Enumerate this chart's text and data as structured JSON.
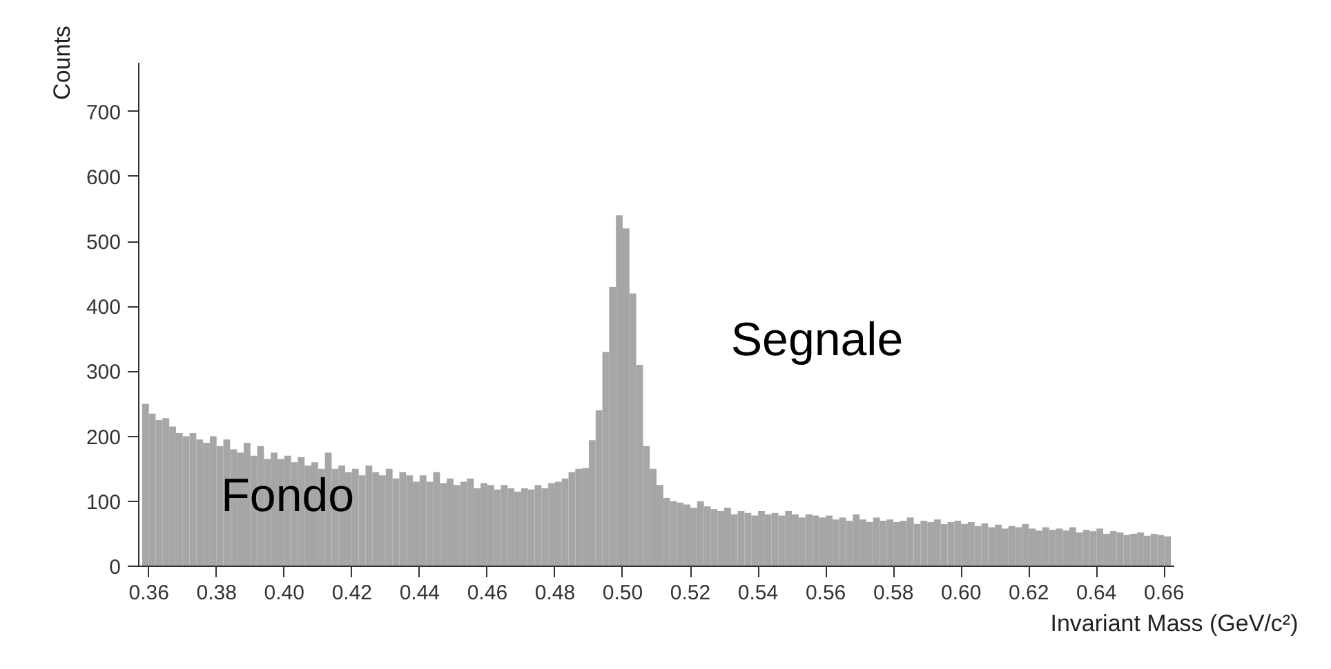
{
  "chart_data": {
    "type": "histogram",
    "xlabel": "Invariant Mass (GeV/c²)",
    "ylabel": "Counts",
    "color": "#a6a6a6",
    "bins": [
      0.358,
      0.36,
      0.362,
      0.364,
      0.366,
      0.368,
      0.37,
      0.372,
      0.374,
      0.376,
      0.378,
      0.38,
      0.382,
      0.384,
      0.386,
      0.388,
      0.39,
      0.392,
      0.394,
      0.396,
      0.398,
      0.4,
      0.402,
      0.404,
      0.406,
      0.408,
      0.41,
      0.412,
      0.414,
      0.416,
      0.418,
      0.42,
      0.422,
      0.424,
      0.426,
      0.428,
      0.43,
      0.432,
      0.434,
      0.436,
      0.438,
      0.44,
      0.442,
      0.444,
      0.446,
      0.448,
      0.45,
      0.452,
      0.454,
      0.456,
      0.458,
      0.46,
      0.462,
      0.464,
      0.466,
      0.468,
      0.47,
      0.472,
      0.474,
      0.476,
      0.478,
      0.48,
      0.482,
      0.484,
      0.486,
      0.488,
      0.49,
      0.492,
      0.494,
      0.496,
      0.498,
      0.5,
      0.502,
      0.504,
      0.506,
      0.508,
      0.51,
      0.512,
      0.514,
      0.516,
      0.518,
      0.52,
      0.522,
      0.524,
      0.526,
      0.528,
      0.53,
      0.532,
      0.534,
      0.536,
      0.538,
      0.54,
      0.542,
      0.544,
      0.546,
      0.548,
      0.55,
      0.552,
      0.554,
      0.556,
      0.558,
      0.56,
      0.562,
      0.564,
      0.566,
      0.568,
      0.57,
      0.572,
      0.574,
      0.576,
      0.578,
      0.58,
      0.582,
      0.584,
      0.586,
      0.588,
      0.59,
      0.592,
      0.594,
      0.596,
      0.598,
      0.6,
      0.602,
      0.604,
      0.606,
      0.608,
      0.61,
      0.612,
      0.614,
      0.616,
      0.618,
      0.62,
      0.622,
      0.624,
      0.626,
      0.628,
      0.63,
      0.632,
      0.634,
      0.636,
      0.638,
      0.64,
      0.642,
      0.644,
      0.646,
      0.648,
      0.65,
      0.652,
      0.654,
      0.656,
      0.658,
      0.66,
      0.662
    ],
    "values": [
      250,
      235,
      225,
      228,
      215,
      205,
      200,
      205,
      195,
      190,
      200,
      185,
      195,
      180,
      175,
      190,
      170,
      185,
      165,
      175,
      165,
      170,
      160,
      168,
      155,
      160,
      150,
      175,
      150,
      155,
      145,
      150,
      140,
      155,
      145,
      140,
      150,
      135,
      145,
      140,
      130,
      140,
      130,
      145,
      128,
      135,
      125,
      130,
      135,
      120,
      128,
      125,
      118,
      125,
      120,
      115,
      120,
      118,
      125,
      120,
      128,
      130,
      135,
      145,
      150,
      151,
      194,
      240,
      330,
      430,
      540,
      520,
      420,
      310,
      185,
      150,
      125,
      105,
      100,
      98,
      95,
      90,
      100,
      92,
      88,
      85,
      90,
      80,
      85,
      82,
      78,
      85,
      80,
      82,
      78,
      85,
      80,
      75,
      80,
      78,
      75,
      78,
      72,
      75,
      70,
      80,
      72,
      68,
      75,
      70,
      72,
      68,
      70,
      75,
      65,
      70,
      68,
      72,
      65,
      68,
      70,
      65,
      68,
      62,
      66,
      60,
      64,
      58,
      62,
      60,
      65,
      58,
      55,
      60,
      56,
      58,
      55,
      60,
      52,
      56,
      54,
      58,
      50,
      54,
      52,
      48,
      50,
      52,
      47,
      50,
      48,
      46
    ],
    "xlim": [
      0.357,
      0.663
    ],
    "ylim": [
      0,
      775
    ],
    "xticks": [
      {
        "value": 0.36,
        "label": "0.36"
      },
      {
        "value": 0.38,
        "label": "0.38"
      },
      {
        "value": 0.4,
        "label": "0.40"
      },
      {
        "value": 0.42,
        "label": "0.42"
      },
      {
        "value": 0.44,
        "label": "0.44"
      },
      {
        "value": 0.46,
        "label": "0.46"
      },
      {
        "value": 0.48,
        "label": "0.48"
      },
      {
        "value": 0.5,
        "label": "0.50"
      },
      {
        "value": 0.52,
        "label": "0.52"
      },
      {
        "value": 0.54,
        "label": "0.54"
      },
      {
        "value": 0.56,
        "label": "0.56"
      },
      {
        "value": 0.58,
        "label": "0.58"
      },
      {
        "value": 0.6,
        "label": "0.60"
      },
      {
        "value": 0.62,
        "label": "0.62"
      },
      {
        "value": 0.64,
        "label": "0.64"
      },
      {
        "value": 0.66,
        "label": "0.66"
      }
    ],
    "yticks": [
      0,
      100,
      200,
      300,
      400,
      500,
      600,
      700
    ],
    "annotations": [
      {
        "text": "Fondo",
        "x": 0.401,
        "y": 108
      },
      "Segnale"
    ],
    "grid": false
  }
}
